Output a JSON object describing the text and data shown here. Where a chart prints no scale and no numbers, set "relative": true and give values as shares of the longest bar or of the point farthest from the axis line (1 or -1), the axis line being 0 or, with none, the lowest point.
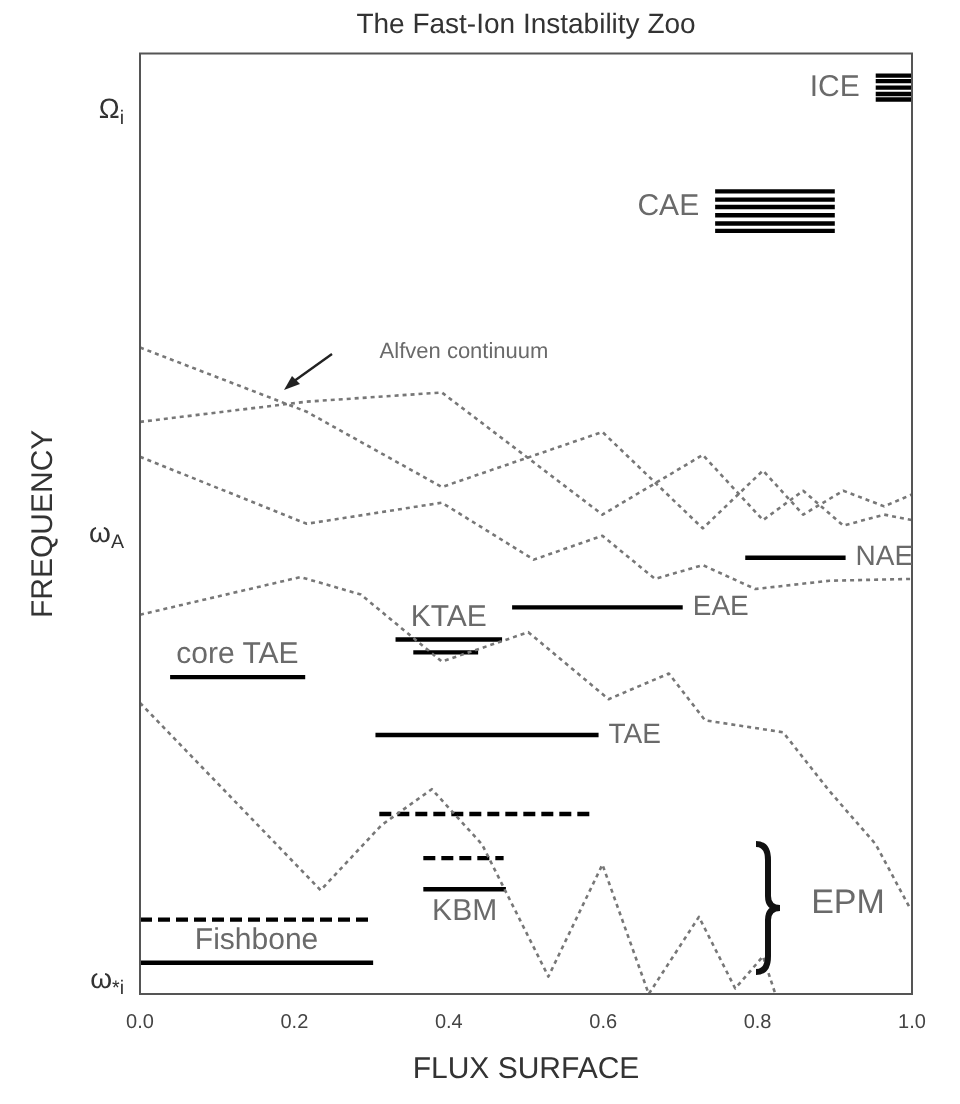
{
  "chart_data": {
    "type": "line",
    "title": "The Fast-Ion Instability Zoo",
    "xlabel": "FLUX SURFACE",
    "ylabel": "FREQUENCY",
    "relative": true,
    "marker": "none",
    "grid": false,
    "legend": false,
    "xlim": [
      0,
      1
    ],
    "xticks": [
      {
        "value": 0,
        "label": "0.0"
      },
      {
        "value": 0.2,
        "label": "0.2"
      },
      {
        "value": 0.4,
        "label": "0.4"
      },
      {
        "value": 0.6,
        "label": "0.6"
      },
      {
        "value": 0.8,
        "label": "0.8"
      },
      {
        "value": 1,
        "label": "1.0"
      }
    ],
    "series": [
      {
        "color": "#777777",
        "line_style": "dotted",
        "x": [
          0,
          0.216,
          0.391,
          0.599,
          0.729,
          0.807,
          0.859,
          0.911,
          0.964,
          1.0
        ],
        "values": [
          0.704,
          0.634,
          0.552,
          0.612,
          0.507,
          0.57,
          0.522,
          0.548,
          0.531,
          0.544
        ]
      },
      {
        "color": "#777777",
        "line_style": "dotted",
        "x": [
          0,
          0.216,
          0.391,
          0.599,
          0.729,
          0.807,
          0.859,
          0.911,
          0.964,
          1.0
        ],
        "values": [
          0.623,
          0.645,
          0.655,
          0.522,
          0.587,
          0.516,
          0.548,
          0.51,
          0.522,
          0.516
        ]
      },
      {
        "color": "#777777",
        "line_style": "dotted",
        "x": [
          0,
          0.216,
          0.391,
          0.51,
          0.599,
          0.667,
          0.729,
          0.797,
          0.893,
          1.0
        ],
        "values": [
          0.585,
          0.512,
          0.535,
          0.473,
          0.499,
          0.452,
          0.467,
          0.441,
          0.45,
          0.452
        ]
      },
      {
        "color": "#777777",
        "line_style": "dotted",
        "x": [
          0,
          0.208,
          0.286,
          0.391,
          0.503,
          0.607,
          0.685,
          0.732,
          0.833,
          0.893,
          0.953,
          0.997
        ],
        "values": [
          0.413,
          0.454,
          0.435,
          0.362,
          0.394,
          0.321,
          0.349,
          0.298,
          0.285,
          0.221,
          0.163,
          0.094
        ]
      },
      {
        "color": "#777777",
        "line_style": "dotted",
        "x": [
          0,
          0.234,
          0.313,
          0.378,
          0.443,
          0.529,
          0.599,
          0.659,
          0.724,
          0.771,
          0.807,
          0.823
        ],
        "values": [
          0.317,
          0.113,
          0.184,
          0.223,
          0.163,
          0.019,
          0.141,
          0,
          0.084,
          0.006,
          0.041,
          0
        ]
      },
      {
        "color": "#000000",
        "line_style": "solid",
        "x": [
          0.953,
          1.0
        ],
        "values": [
          1.0,
          1.0
        ]
      },
      {
        "color": "#000000",
        "line_style": "solid",
        "x": [
          0.953,
          1.0
        ],
        "values": [
          0.994,
          0.994
        ]
      },
      {
        "name": "ICE",
        "color": "#000000",
        "line_style": "solid",
        "x": [
          0.953,
          1.0
        ],
        "values": [
          0.987,
          0.987
        ]
      },
      {
        "color": "#000000",
        "line_style": "solid",
        "x": [
          0.953,
          1.0
        ],
        "values": [
          0.98,
          0.98
        ]
      },
      {
        "color": "#000000",
        "line_style": "solid",
        "x": [
          0.953,
          1.0
        ],
        "values": [
          0.974,
          0.974
        ]
      },
      {
        "color": "#000000",
        "line_style": "solid",
        "x": [
          0.745,
          0.9
        ],
        "values": [
          0.874,
          0.874
        ]
      },
      {
        "color": "#000000",
        "line_style": "solid",
        "x": [
          0.745,
          0.9
        ],
        "values": [
          0.865,
          0.865
        ]
      },
      {
        "name": "CAE",
        "color": "#000000",
        "line_style": "solid",
        "x": [
          0.745,
          0.9
        ],
        "values": [
          0.857,
          0.857
        ]
      },
      {
        "color": "#000000",
        "line_style": "solid",
        "x": [
          0.745,
          0.9
        ],
        "values": [
          0.848,
          0.848
        ]
      },
      {
        "color": "#000000",
        "line_style": "solid",
        "x": [
          0.745,
          0.9
        ],
        "values": [
          0.839,
          0.839
        ]
      },
      {
        "color": "#000000",
        "line_style": "solid",
        "x": [
          0.745,
          0.9
        ],
        "values": [
          0.831,
          0.831
        ]
      },
      {
        "name": "NAE",
        "color": "#000000",
        "line_style": "solid",
        "x": [
          0.784,
          0.914
        ],
        "values": [
          0.475,
          0.475
        ]
      },
      {
        "name": "EAE",
        "color": "#000000",
        "line_style": "solid",
        "x": [
          0.482,
          0.703
        ],
        "values": [
          0.421,
          0.421
        ]
      },
      {
        "name": "KTAE",
        "color": "#000000",
        "line_style": "solid",
        "x": [
          0.331,
          0.469
        ],
        "values": [
          0.386,
          0.386
        ]
      },
      {
        "color": "#000000",
        "line_style": "solid",
        "x": [
          0.354,
          0.438
        ],
        "values": [
          0.372,
          0.372
        ]
      },
      {
        "name": "core TAE",
        "color": "#000000",
        "line_style": "solid",
        "x": [
          0.039,
          0.214
        ],
        "values": [
          0.345,
          0.345
        ]
      },
      {
        "name": "TAE",
        "color": "#000000",
        "line_style": "solid",
        "x": [
          0.305,
          0.594
        ],
        "values": [
          0.282,
          0.282
        ]
      },
      {
        "color": "#000000",
        "line_style": "dashed",
        "x": [
          0.31,
          0.589
        ],
        "values": [
          0.196,
          0.196
        ]
      },
      {
        "color": "#000000",
        "line_style": "dashed",
        "x": [
          0.367,
          0.471
        ],
        "values": [
          0.148,
          0.148
        ]
      },
      {
        "name": "KBM",
        "color": "#000000",
        "line_style": "solid",
        "x": [
          0.367,
          0.474
        ],
        "values": [
          0.114,
          0.114
        ]
      },
      {
        "color": "#000000",
        "line_style": "dashed",
        "x": [
          0,
          0.302
        ],
        "values": [
          0.081,
          0.081
        ]
      },
      {
        "name": "Fishbone",
        "color": "#000000",
        "line_style": "solid",
        "x": [
          0,
          0.302
        ],
        "values": [
          0.034,
          0.034
        ]
      }
    ],
    "annotations": [
      "Ω$_{i}$",
      "ω$_{A}$",
      "ω$_{*i}$",
      "Alfven continuum",
      "EPM"
    ]
  }
}
